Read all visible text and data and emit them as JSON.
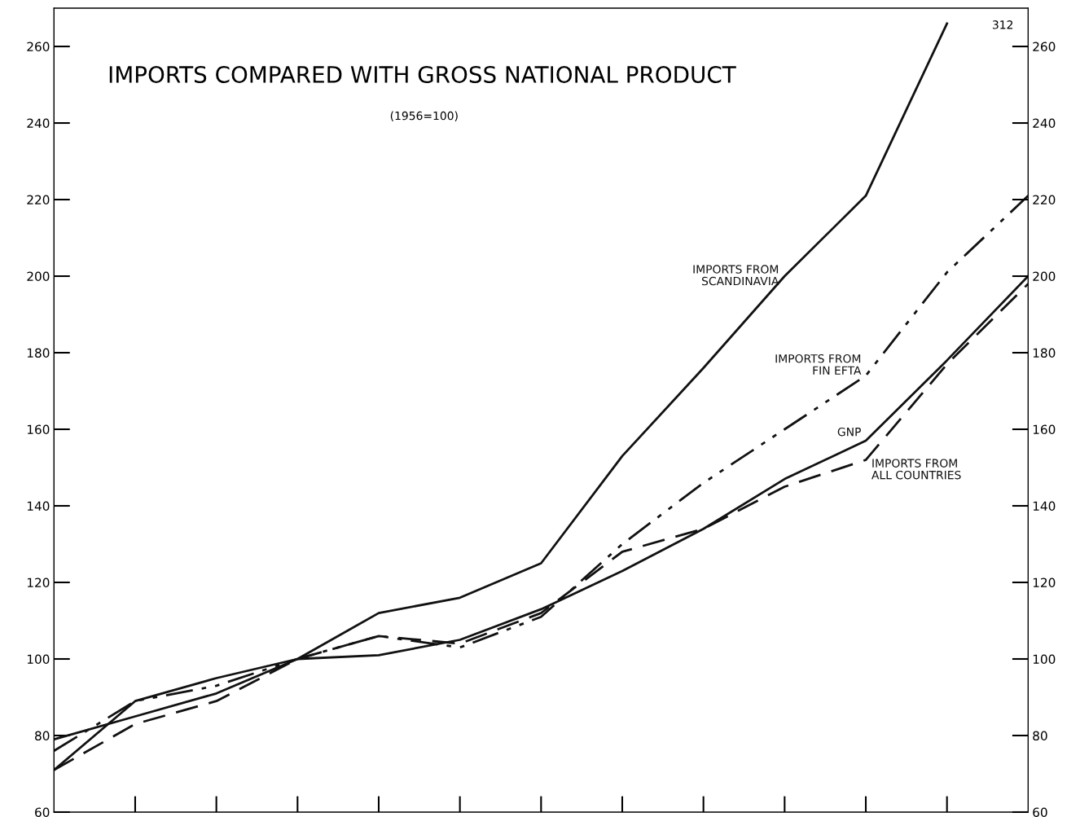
{
  "chart_data": {
    "type": "line",
    "title": "IMPORTS COMPARED WITH GROSS NATIONAL PRODUCT",
    "subtitle": "(1956=100)",
    "categories": [
      null,
      null,
      null,
      null,
      null,
      null,
      null,
      null,
      null,
      null,
      null,
      null,
      null
    ],
    "series": [
      {
        "name": "IMPORTS FROM\nSCANDINAVIA",
        "color": "#111111",
        "line_style": "solid",
        "values": [
          71,
          89,
          95,
          100,
          112,
          116,
          125,
          153,
          176,
          200,
          221,
          266,
          null
        ]
      },
      {
        "name": "IMPORTS FROM\nFIN EFTA",
        "color": "#111111",
        "line_style": "dashdot",
        "values": [
          76,
          89,
          93,
          100,
          106,
          103,
          111,
          130,
          146,
          160,
          174,
          201,
          221
        ]
      },
      {
        "name": "GNP",
        "color": "#111111",
        "line_style": "solid",
        "values": [
          79,
          85,
          91,
          100,
          101,
          105,
          113,
          123,
          134,
          147,
          157,
          178,
          200
        ]
      },
      {
        "name": "IMPORTS FROM\nALL COUNTRIES",
        "color": "#111111",
        "line_style": "dashed",
        "values": [
          71,
          83,
          89,
          100,
          106,
          104,
          112,
          128,
          134,
          145,
          152,
          177,
          198
        ]
      }
    ],
    "annotations": [
      "312"
    ],
    "ylim": [
      60,
      270
    ],
    "yticks": [
      60,
      80,
      100,
      120,
      140,
      160,
      180,
      200,
      220,
      240,
      260
    ],
    "y2lim": [
      60,
      270
    ],
    "y2ticks": [
      60,
      80,
      100,
      120,
      140,
      160,
      180,
      200,
      220,
      240,
      260
    ],
    "grid": false,
    "legend": false,
    "marker": "none"
  }
}
